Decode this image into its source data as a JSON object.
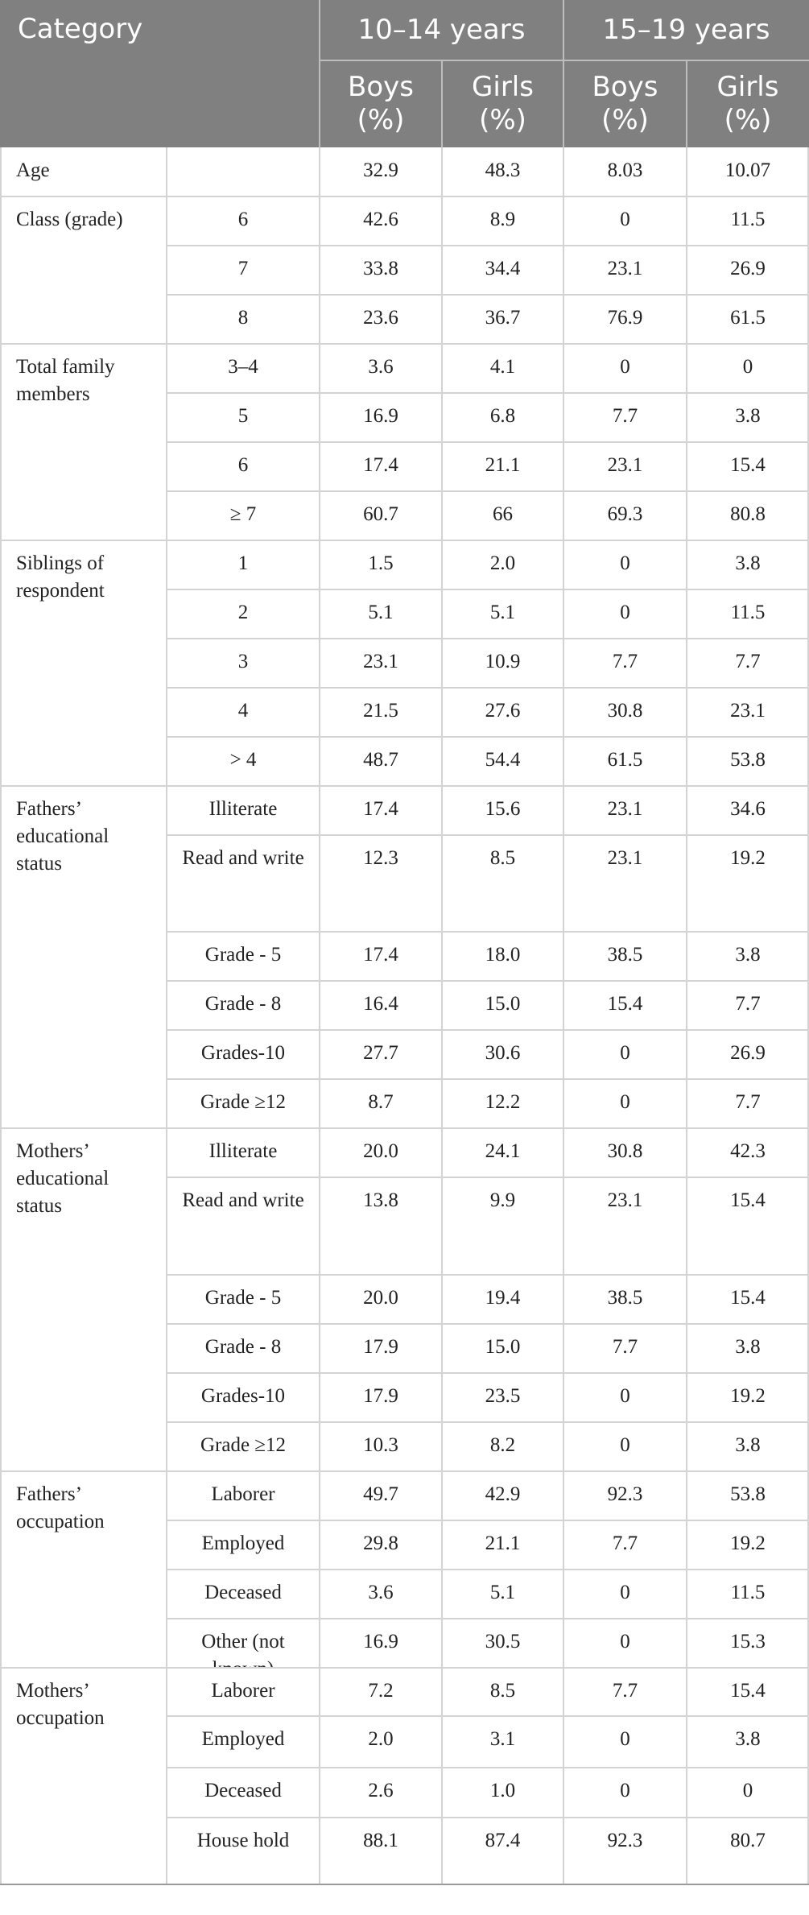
{
  "header": {
    "category_label": "Category",
    "group_1014": "10–14 years",
    "group_1519": "15–19 years",
    "boys": "Boys (%)",
    "girls": "Girls (%)"
  },
  "rows": [
    {
      "category": "Age",
      "sub": "",
      "values": [
        "32.9",
        "48.3",
        "8.03",
        "10.07"
      ]
    },
    {
      "category": "Class (grade)",
      "sub": "6",
      "values": [
        "42.6",
        "8.9",
        "0",
        "11.5"
      ]
    },
    {
      "category": "",
      "sub": "7",
      "values": [
        "33.8",
        "34.4",
        "23.1",
        "26.9"
      ]
    },
    {
      "category": "",
      "sub": "8",
      "values": [
        "23.6",
        "36.7",
        "76.9",
        "61.5"
      ]
    },
    {
      "category": "Total family members",
      "sub": "3–4",
      "values": [
        "3.6",
        "4.1",
        "0",
        "0"
      ]
    },
    {
      "category": "",
      "sub": "5",
      "values": [
        "16.9",
        "6.8",
        "7.7",
        "3.8"
      ]
    },
    {
      "category": "",
      "sub": "6",
      "values": [
        "17.4",
        "21.1",
        "23.1",
        "15.4"
      ]
    },
    {
      "category": "",
      "sub": "≥ 7",
      "values": [
        "60.7",
        "66",
        "69.3",
        "80.8"
      ]
    },
    {
      "category": "Siblings of respondent",
      "sub": "1",
      "values": [
        "1.5",
        "2.0",
        "0",
        "3.8"
      ]
    },
    {
      "category": "",
      "sub": "2",
      "values": [
        "5.1",
        "5.1",
        "0",
        "11.5"
      ]
    },
    {
      "category": "",
      "sub": "3",
      "values": [
        "23.1",
        "10.9",
        "7.7",
        "7.7"
      ]
    },
    {
      "category": "",
      "sub": "4",
      "values": [
        "21.5",
        "27.6",
        "30.8",
        "23.1"
      ]
    },
    {
      "category": "",
      "sub": "> 4",
      "values": [
        "48.7",
        "54.4",
        "61.5",
        "53.8"
      ]
    },
    {
      "category": "Fathers’ educational status",
      "sub": "Illiterate",
      "values": [
        "17.4",
        "15.6",
        "23.1",
        "34.6"
      ]
    },
    {
      "category": "",
      "sub": "Read and write",
      "values": [
        "12.3",
        "8.5",
        "23.1",
        "19.2"
      ]
    },
    {
      "category": "",
      "sub": "Grade - 5",
      "values": [
        "17.4",
        "18.0",
        "38.5",
        "3.8"
      ]
    },
    {
      "category": "",
      "sub": "Grade - 8",
      "values": [
        "16.4",
        "15.0",
        "15.4",
        "7.7"
      ]
    },
    {
      "category": "",
      "sub": "Grades-10",
      "values": [
        "27.7",
        "30.6",
        "0",
        "26.9"
      ]
    },
    {
      "category": "",
      "sub": "Grade ≥12",
      "values": [
        "8.7",
        "12.2",
        "0",
        "7.7"
      ]
    },
    {
      "category": "Mothers’ educational status",
      "sub": "Illiterate",
      "values": [
        "20.0",
        "24.1",
        "30.8",
        "42.3"
      ]
    },
    {
      "category": "",
      "sub": "Read and write",
      "values": [
        "13.8",
        "9.9",
        "23.1",
        "15.4"
      ]
    },
    {
      "category": "",
      "sub": "Grade - 5",
      "values": [
        "20.0",
        "19.4",
        "38.5",
        "15.4"
      ]
    },
    {
      "category": "",
      "sub": "Grade - 8",
      "values": [
        "17.9",
        "15.0",
        "7.7",
        "3.8"
      ]
    },
    {
      "category": "",
      "sub": "Grades-10",
      "values": [
        "17.9",
        "23.5",
        "0",
        "19.2"
      ]
    },
    {
      "category": "",
      "sub": "Grade ≥12",
      "values": [
        "10.3",
        "8.2",
        "0",
        "3.8"
      ]
    },
    {
      "category": "Fathers’ occupation",
      "sub": "Laborer",
      "values": [
        "49.7",
        "42.9",
        "92.3",
        "53.8"
      ]
    },
    {
      "category": "",
      "sub": "Employed",
      "values": [
        "29.8",
        "21.1",
        "7.7",
        "19.2"
      ]
    },
    {
      "category": "",
      "sub": "Deceased",
      "values": [
        "3.6",
        "5.1",
        "0",
        "11.5"
      ]
    },
    {
      "category": "",
      "sub": "Other (not known)",
      "values": [
        "16.9",
        "30.5",
        "0",
        "15.3"
      ]
    },
    {
      "category": "Mothers’ occupation",
      "sub": "Laborer",
      "values": [
        "7.2",
        "8.5",
        "7.7",
        "15.4"
      ]
    },
    {
      "category": "",
      "sub": "Employed",
      "values": [
        "2.0",
        "3.1",
        "0",
        "3.8"
      ]
    },
    {
      "category": "",
      "sub": "Deceased",
      "values": [
        "2.6",
        "1.0",
        "0",
        "0"
      ]
    },
    {
      "category": "",
      "sub": "House hold",
      "values": [
        "88.1",
        "87.4",
        "92.3",
        "80.7"
      ]
    }
  ]
}
